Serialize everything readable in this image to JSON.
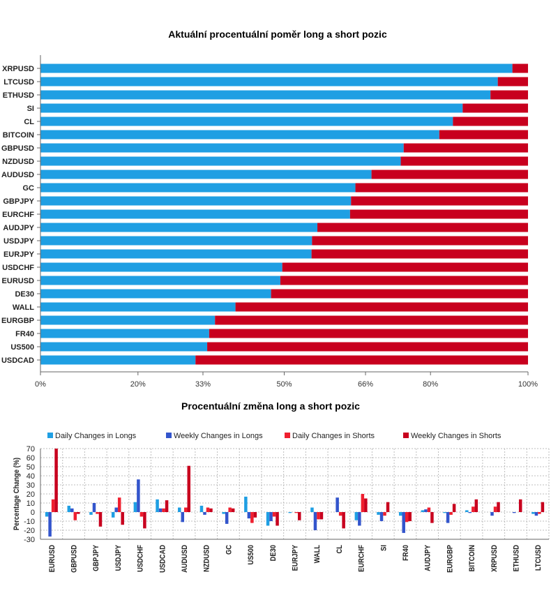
{
  "chart_data": [
    {
      "type": "bar",
      "orientation": "horizontal",
      "stacked": true,
      "title": "Aktuální procentuální poměr long a short pozic",
      "categories": [
        "XRPUSD",
        "LTCUSD",
        "ETHUSD",
        "SI",
        "CL",
        "BITCOIN",
        "GBPUSD",
        "NZDUSD",
        "AUDUSD",
        "GC",
        "GBPJPY",
        "EURCHF",
        "AUDJPY",
        "USDJPY",
        "EURJPY",
        "USDCHF",
        "EURUSD",
        "DE30",
        "WALL",
        "EURGBP",
        "FR40",
        "US500",
        "USDCAD"
      ],
      "series": [
        {
          "key": "long",
          "color": "#1f9fe3",
          "values": [
            96.8,
            93.8,
            92.3,
            86.6,
            84.6,
            81.8,
            74.5,
            73.9,
            67.9,
            64.6,
            63.7,
            63.5,
            56.8,
            55.7,
            55.6,
            49.6,
            49.2,
            47.3,
            40.0,
            35.8,
            34.6,
            34.2,
            31.8
          ]
        },
        {
          "key": "short",
          "color": "#c8001e",
          "values": [
            3.2,
            6.2,
            7.7,
            13.4,
            15.4,
            18.2,
            25.5,
            26.1,
            32.1,
            35.4,
            36.3,
            36.5,
            43.2,
            44.3,
            44.4,
            50.4,
            50.8,
            52.7,
            60.0,
            64.2,
            65.4,
            65.8,
            68.2
          ]
        }
      ],
      "xlim": [
        0,
        100
      ],
      "xticks": [
        {
          "value": 0,
          "label": "0%"
        },
        {
          "value": 20,
          "label": "20%"
        },
        {
          "value": 33.33,
          "label": "33%"
        },
        {
          "value": 50,
          "label": "50%"
        },
        {
          "value": 66.67,
          "label": "66%"
        },
        {
          "value": 80,
          "label": "80%"
        },
        {
          "value": 100,
          "label": "100%"
        }
      ]
    },
    {
      "type": "bar",
      "orientation": "vertical",
      "title": "Procentuální změna long a short pozic",
      "ylabel": "Percentage Change (%)",
      "ylim": [
        -30,
        70
      ],
      "yticks": [
        -30,
        -20,
        -10,
        0,
        10,
        20,
        30,
        40,
        50,
        60,
        70
      ],
      "grid": true,
      "legend_position": "top",
      "categories": [
        "EURUSD",
        "GBPUSD",
        "GBPJPY",
        "USDJPY",
        "USDCHF",
        "USDCAD",
        "AUDUSD",
        "NZDUSD",
        "GC",
        "US500",
        "DE30",
        "EURJPY",
        "WALL",
        "CL",
        "EURCHF",
        "SI",
        "FR40",
        "AUDJPY",
        "EURGBP",
        "BITCOIN",
        "XRPUSD",
        "ETHUSD",
        "LTCUSD"
      ],
      "series": [
        {
          "name": "Daily Changes in Longs",
          "color": "#1f9fe3",
          "values": [
            -5,
            7,
            -3,
            -6,
            11,
            14,
            5,
            7,
            -2,
            17,
            -15,
            -1,
            5,
            0,
            -9,
            -3,
            -4,
            2,
            -1,
            2,
            0,
            0,
            -2
          ]
        },
        {
          "name": "Weekly Changes in Longs",
          "color": "#3355cc",
          "values": [
            -27,
            4,
            10,
            5,
            36,
            4,
            -11,
            -3,
            -13,
            -7,
            -10,
            0,
            -20,
            16,
            -15,
            -10,
            -23,
            3,
            -12,
            -1,
            -4,
            -1,
            -4
          ]
        },
        {
          "name": "Daily Changes in Shorts",
          "color": "#ef1f2f",
          "values": [
            14,
            -9,
            -2,
            16,
            -5,
            4,
            5,
            5,
            5,
            -12,
            -5,
            -1,
            -8,
            -4,
            20,
            -4,
            -11,
            5,
            -3,
            6,
            6,
            0,
            -2
          ]
        },
        {
          "name": "Weekly Changes in Shorts",
          "color": "#c8001e",
          "values": [
            70,
            -2,
            -16,
            -14,
            -18,
            13,
            51,
            4,
            4,
            -6,
            -15,
            -9,
            -8,
            -18,
            15,
            11,
            -10,
            -12,
            9,
            14,
            11,
            14,
            11
          ]
        }
      ]
    }
  ]
}
